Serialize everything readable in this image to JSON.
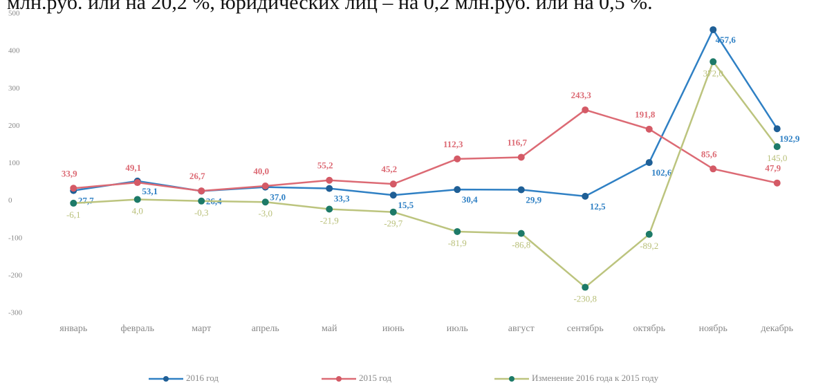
{
  "chart_data": {
    "type": "line",
    "text_above": "млн.руб. или на 20,2 %, юридических лиц – на 0,2 млн.руб. или на 0,5 %.",
    "categories": [
      "январь",
      "февраль",
      "март",
      "апрель",
      "май",
      "июнь",
      "июль",
      "август",
      "сентябрь",
      "октябрь",
      "ноябрь",
      "декабрь"
    ],
    "series": [
      {
        "name": "2016 год",
        "color": "#2f80c4",
        "marker_color": "#1f5f96",
        "values": [
          27.7,
          53.1,
          26.4,
          37.0,
          33.3,
          15.5,
          30.4,
          29.9,
          12.5,
          102.6,
          457.6,
          192.9
        ],
        "value_labels": [
          "27,7",
          "53,1",
          "26,4",
          "37,0",
          "33,3",
          "15,5",
          "30,4",
          "29,9",
          "12,5",
          "102,6",
          "457,6",
          "192,9"
        ]
      },
      {
        "name": "2015 год",
        "color": "#dc6a74",
        "marker_color": "#d45a66",
        "values": [
          33.9,
          49.1,
          26.7,
          40.0,
          55.2,
          45.2,
          112.3,
          116.7,
          243.3,
          191.8,
          85.6,
          47.9
        ],
        "value_labels": [
          "33,9",
          "49,1",
          "26,7",
          "40,0",
          "55,2",
          "45,2",
          "112,3",
          "116,7",
          "243,3",
          "191,8",
          "85,6",
          "47,9"
        ]
      },
      {
        "name": "Изменение 2016 года к 2015 году",
        "color": "#bcc47e",
        "marker_color": "#1d7a68",
        "values": [
          -6.1,
          4.0,
          -0.3,
          -3.0,
          -21.9,
          -29.7,
          -81.9,
          -86.8,
          -230.8,
          -89.2,
          372.0,
          145.0
        ],
        "value_labels": [
          "-6,1",
          "4,0",
          "-0,3",
          "-3,0",
          "-21,9",
          "-29,7",
          "-81,9",
          "-86,8",
          "-230,8",
          "-89,2",
          "372,0",
          "145,0"
        ]
      }
    ],
    "ylim": [
      -300,
      500
    ],
    "yticks": [
      -300,
      -200,
      -100,
      0,
      100,
      200,
      300,
      400,
      500
    ],
    "grid": false
  }
}
